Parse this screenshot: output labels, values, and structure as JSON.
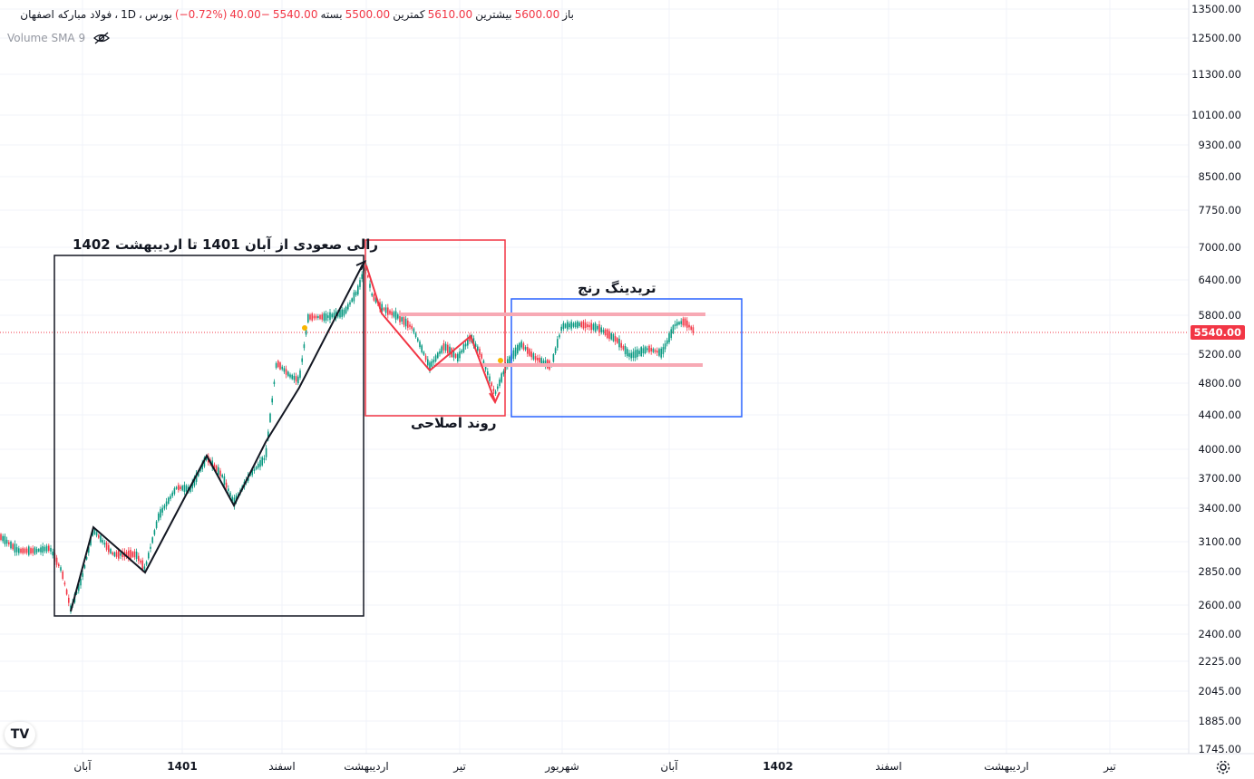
{
  "legend": {
    "symbol": "فولاد مبارکه اصفهان",
    "sep1": "،",
    "interval": "1D",
    "sep2": "،",
    "exchange": "بورس",
    "open_label": "باز",
    "open_value": "5600.00",
    "high_label": "بیشترین",
    "high_value": "5610.00",
    "low_label": "کمترین",
    "low_value": "5500.00",
    "close_label": "بسته",
    "close_value": "5540.00",
    "change_value": "−40.00",
    "change_pct": "(−0.72%)"
  },
  "volume_indicator": {
    "label": "Volume SMA 9",
    "icon": "eye-hidden-icon"
  },
  "price_axis": {
    "labels": [
      "13500.00",
      "12500.00",
      "11300.00",
      "10100.00",
      "9300.00",
      "8500.00",
      "7750.00",
      "7000.00",
      "6400.00",
      "5800.00",
      "5200.00",
      "4800.00",
      "4400.00",
      "4000.00",
      "3700.00",
      "3400.00",
      "3100.00",
      "2850.00",
      "2600.00",
      "2400.00",
      "2225.00",
      "2045.00",
      "1885.00",
      "1745.00"
    ],
    "current_price": "5540.00"
  },
  "time_axis": {
    "labels": [
      {
        "text": "آبان",
        "bold": false
      },
      {
        "text": "1401",
        "bold": true
      },
      {
        "text": "اسفند",
        "bold": false
      },
      {
        "text": "اردیبهشت",
        "bold": false
      },
      {
        "text": "تیر",
        "bold": false
      },
      {
        "text": "شهریور",
        "bold": false
      },
      {
        "text": "آبان",
        "bold": false
      },
      {
        "text": "1402",
        "bold": true
      },
      {
        "text": "اسفند",
        "bold": false
      },
      {
        "text": "اردیبهشت",
        "bold": false
      },
      {
        "text": "تیر",
        "bold": false
      }
    ]
  },
  "annotations": {
    "rally": "رالی صعودی از آبان 1401 تا اردیبهشت 1402",
    "correction": "روند اصلاحی",
    "range": "تریدینگ رنج"
  },
  "colors": {
    "up": "#089981",
    "down": "#f23645",
    "rally_box": "#131722",
    "correction_box": "#f23645",
    "range_box": "#2962ff",
    "range_lines": "#f7a9b4"
  },
  "logo": "TV",
  "settings_icon": "gear-icon"
}
